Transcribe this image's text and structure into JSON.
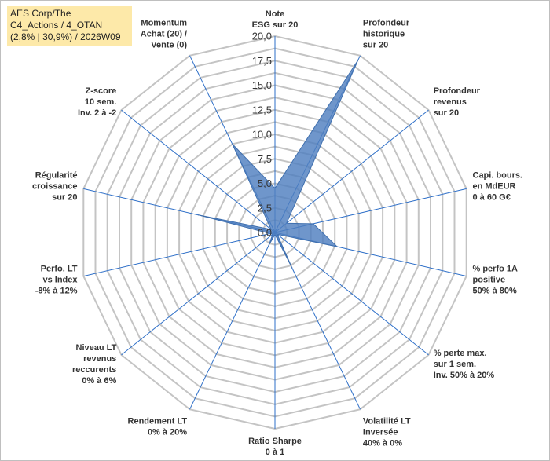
{
  "title": {
    "line1": "AES Corp/The",
    "line2": "C4_Actions / 4_OTAN",
    "line3": "(2,8% | 30,9%) / 2026W09"
  },
  "chart_data": {
    "type": "radar",
    "rmax": 20,
    "ticks": [
      "0,0",
      "2,5",
      "5,0",
      "7,5",
      "10,0",
      "12,5",
      "15,0",
      "17,5",
      "20,0"
    ],
    "tick_values": [
      0,
      2.5,
      5,
      7.5,
      10,
      12.5,
      15,
      17.5,
      20
    ],
    "grid_step": 1.25,
    "categories": [
      [
        "Note",
        "ESG sur 20"
      ],
      [
        "Profondeur",
        "historique",
        "sur 20"
      ],
      [
        "Profondeur",
        "revenus",
        "sur 20"
      ],
      [
        "Capi. bours.",
        "en MdEUR",
        "0 à 60 G€"
      ],
      [
        "% perfo 1A",
        "positive",
        "50% à 80%"
      ],
      [
        "% perte max.",
        "sur 1 sem.",
        "Inv. 50% à 20%"
      ],
      [
        "Volatilité LT",
        "Inversée",
        "40% à 0%"
      ],
      [
        "Ratio Sharpe",
        "0 à 1"
      ],
      [
        "Rendement LT",
        "0% à 20%"
      ],
      [
        "Niveau LT",
        "revenus",
        "reccurents",
        "0% à 6%"
      ],
      [
        "Perfo. LT",
        "vs Index",
        "-8% à 12%"
      ],
      [
        "Régularité",
        "croissance",
        "sur 20"
      ],
      [
        "Z-score",
        "10 sem.",
        "Inv. 2 à -2"
      ],
      [
        "Momentum",
        "Achat (20) /",
        "Vente (0)"
      ]
    ],
    "series": [
      {
        "name": "AES Corp/The",
        "values": [
          4.5,
          19.5,
          1.5,
          4.0,
          6.5,
          0.3,
          4.0,
          0.2,
          1.5,
          0.3,
          0.5,
          8.0,
          0.5,
          10.0
        ],
        "color": "#4f7fbf"
      }
    ],
    "colors": {
      "fill": "#4f7fbf",
      "spoke": "#2e6fc8",
      "grid": "#c4c4c4"
    }
  }
}
